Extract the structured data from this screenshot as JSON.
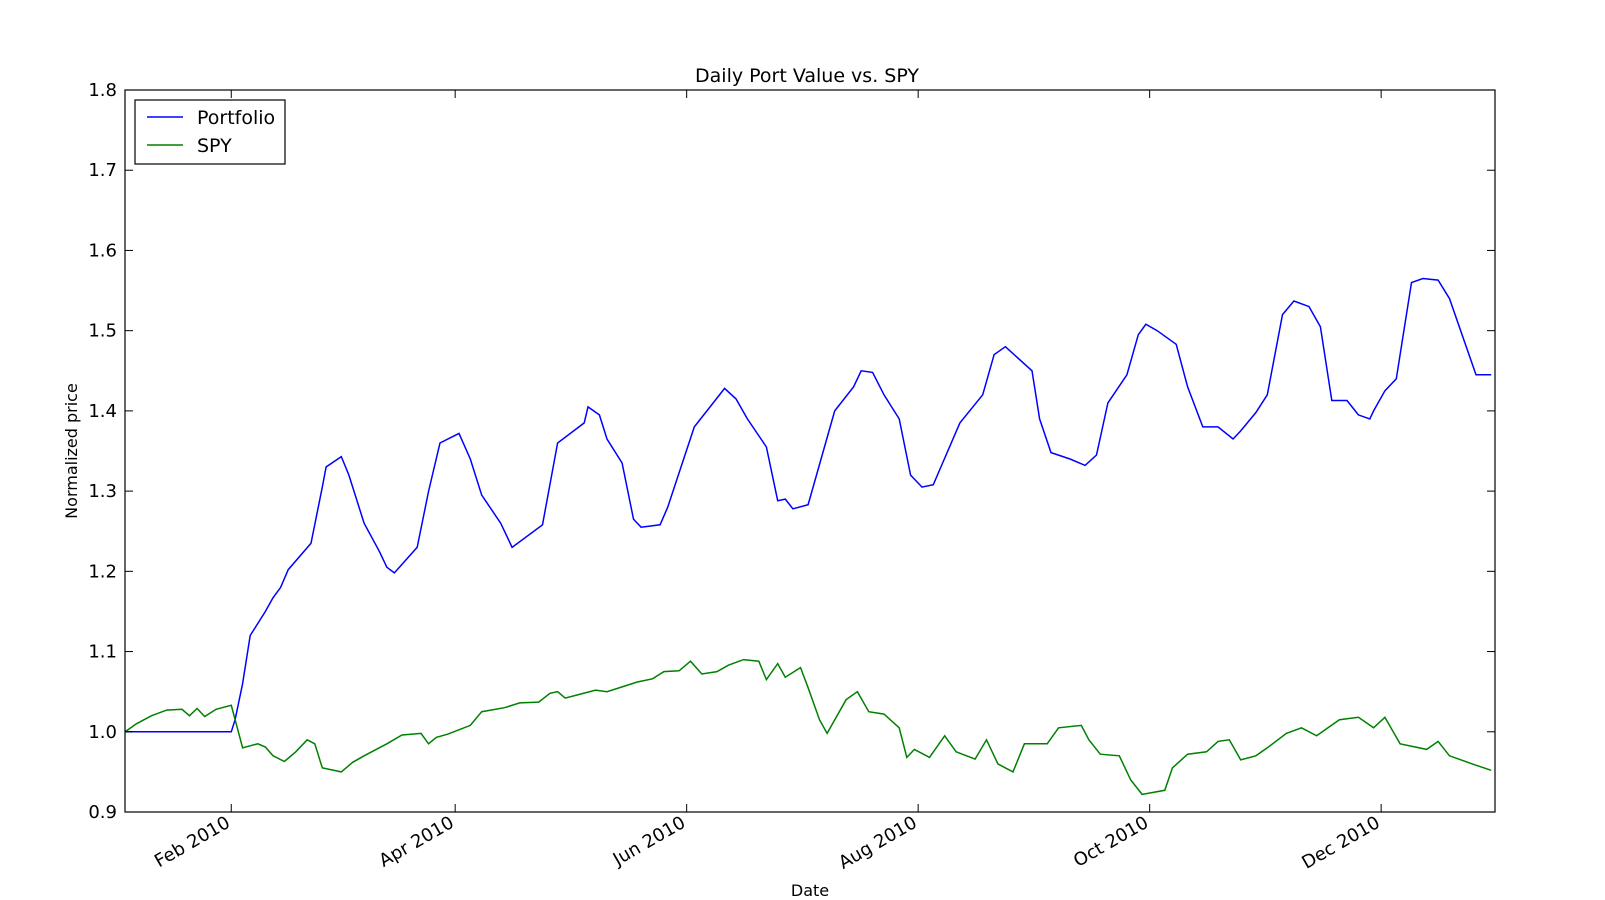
{
  "chart_data": {
    "type": "line",
    "title": "Daily Port Value vs. SPY",
    "xlabel": "Date",
    "ylabel": "Normalized price",
    "x_range": [
      "2010-01-04",
      "2010-12-31"
    ],
    "ylim": [
      0.9,
      1.8
    ],
    "y_ticks": [
      "0.9",
      "1.0",
      "1.1",
      "1.2",
      "1.3",
      "1.4",
      "1.5",
      "1.6",
      "1.7",
      "1.8"
    ],
    "x_ticks": [
      {
        "date": "2010-02-01",
        "label": "Feb 2010"
      },
      {
        "date": "2010-04-01",
        "label": "Apr 2010"
      },
      {
        "date": "2010-06-01",
        "label": "Jun 2010"
      },
      {
        "date": "2010-08-01",
        "label": "Aug 2010"
      },
      {
        "date": "2010-10-01",
        "label": "Oct 2010"
      },
      {
        "date": "2010-12-01",
        "label": "Dec 2010"
      }
    ],
    "grid": false,
    "legend": {
      "position": "top-left"
    },
    "series": [
      {
        "name": "Portfolio",
        "color": "#0000ff",
        "points": [
          [
            "2010-01-04",
            1.0
          ],
          [
            "2010-02-01",
            1.0
          ],
          [
            "2010-02-02",
            1.015
          ],
          [
            "2010-02-04",
            1.06
          ],
          [
            "2010-02-06",
            1.12
          ],
          [
            "2010-02-10",
            1.15
          ],
          [
            "2010-02-12",
            1.167
          ],
          [
            "2010-02-14",
            1.18
          ],
          [
            "2010-02-16",
            1.202
          ],
          [
            "2010-02-22",
            1.235
          ],
          [
            "2010-02-25",
            1.305
          ],
          [
            "2010-02-26",
            1.33
          ],
          [
            "2010-03-02",
            1.343
          ],
          [
            "2010-03-04",
            1.32
          ],
          [
            "2010-03-08",
            1.26
          ],
          [
            "2010-03-12",
            1.225
          ],
          [
            "2010-03-14",
            1.205
          ],
          [
            "2010-03-16",
            1.198
          ],
          [
            "2010-03-22",
            1.23
          ],
          [
            "2010-03-25",
            1.3
          ],
          [
            "2010-03-28",
            1.36
          ],
          [
            "2010-04-02",
            1.372
          ],
          [
            "2010-04-05",
            1.34
          ],
          [
            "2010-04-08",
            1.295
          ],
          [
            "2010-04-13",
            1.26
          ],
          [
            "2010-04-16",
            1.23
          ],
          [
            "2010-04-24",
            1.258
          ],
          [
            "2010-04-28",
            1.36
          ],
          [
            "2010-05-05",
            1.385
          ],
          [
            "2010-05-06",
            1.405
          ],
          [
            "2010-05-09",
            1.395
          ],
          [
            "2010-05-11",
            1.365
          ],
          [
            "2010-05-15",
            1.335
          ],
          [
            "2010-05-18",
            1.265
          ],
          [
            "2010-05-20",
            1.255
          ],
          [
            "2010-05-25",
            1.258
          ],
          [
            "2010-05-27",
            1.28
          ],
          [
            "2010-06-03",
            1.38
          ],
          [
            "2010-06-08",
            1.41
          ],
          [
            "2010-06-11",
            1.428
          ],
          [
            "2010-06-14",
            1.415
          ],
          [
            "2010-06-17",
            1.39
          ],
          [
            "2010-06-22",
            1.355
          ],
          [
            "2010-06-25",
            1.288
          ],
          [
            "2010-06-27",
            1.29
          ],
          [
            "2010-06-29",
            1.278
          ],
          [
            "2010-07-03",
            1.283
          ],
          [
            "2010-07-10",
            1.4
          ],
          [
            "2010-07-15",
            1.43
          ],
          [
            "2010-07-17",
            1.45
          ],
          [
            "2010-07-20",
            1.448
          ],
          [
            "2010-07-23",
            1.42
          ],
          [
            "2010-07-27",
            1.39
          ],
          [
            "2010-07-30",
            1.32
          ],
          [
            "2010-08-02",
            1.305
          ],
          [
            "2010-08-05",
            1.308
          ],
          [
            "2010-08-07",
            1.33
          ],
          [
            "2010-08-12",
            1.385
          ],
          [
            "2010-08-18",
            1.42
          ],
          [
            "2010-08-21",
            1.47
          ],
          [
            "2010-08-24",
            1.48
          ],
          [
            "2010-08-31",
            1.45
          ],
          [
            "2010-09-02",
            1.39
          ],
          [
            "2010-09-05",
            1.348
          ],
          [
            "2010-09-10",
            1.34
          ],
          [
            "2010-09-14",
            1.332
          ],
          [
            "2010-09-17",
            1.345
          ],
          [
            "2010-09-20",
            1.41
          ],
          [
            "2010-09-25",
            1.445
          ],
          [
            "2010-09-28",
            1.495
          ],
          [
            "2010-09-30",
            1.508
          ],
          [
            "2010-10-03",
            1.5
          ],
          [
            "2010-10-08",
            1.483
          ],
          [
            "2010-10-11",
            1.43
          ],
          [
            "2010-10-15",
            1.38
          ],
          [
            "2010-10-19",
            1.38
          ],
          [
            "2010-10-23",
            1.365
          ],
          [
            "2010-10-25",
            1.375
          ],
          [
            "2010-10-29",
            1.398
          ],
          [
            "2010-11-01",
            1.42
          ],
          [
            "2010-11-05",
            1.52
          ],
          [
            "2010-11-08",
            1.537
          ],
          [
            "2010-11-12",
            1.53
          ],
          [
            "2010-11-15",
            1.505
          ],
          [
            "2010-11-18",
            1.413
          ],
          [
            "2010-11-22",
            1.413
          ],
          [
            "2010-11-25",
            1.395
          ],
          [
            "2010-11-28",
            1.39
          ],
          [
            "2010-11-29",
            1.4
          ],
          [
            "2010-12-02",
            1.425
          ],
          [
            "2010-12-05",
            1.44
          ],
          [
            "2010-12-09",
            1.56
          ],
          [
            "2010-12-12",
            1.565
          ],
          [
            "2010-12-16",
            1.563
          ],
          [
            "2010-12-19",
            1.54
          ],
          [
            "2010-12-26",
            1.445
          ],
          [
            "2010-12-30",
            1.445
          ]
        ]
      },
      {
        "name": "SPY",
        "color": "#008000",
        "points": [
          [
            "2010-01-04",
            1.0
          ],
          [
            "2010-01-07",
            1.01
          ],
          [
            "2010-01-11",
            1.02
          ],
          [
            "2010-01-15",
            1.027
          ],
          [
            "2010-01-19",
            1.028
          ],
          [
            "2010-01-21",
            1.02
          ],
          [
            "2010-01-23",
            1.029
          ],
          [
            "2010-01-25",
            1.019
          ],
          [
            "2010-01-28",
            1.028
          ],
          [
            "2010-02-01",
            1.033
          ],
          [
            "2010-02-04",
            0.98
          ],
          [
            "2010-02-08",
            0.985
          ],
          [
            "2010-02-10",
            0.981
          ],
          [
            "2010-02-12",
            0.97
          ],
          [
            "2010-02-15",
            0.963
          ],
          [
            "2010-02-18",
            0.975
          ],
          [
            "2010-02-21",
            0.99
          ],
          [
            "2010-02-23",
            0.985
          ],
          [
            "2010-02-25",
            0.955
          ],
          [
            "2010-03-02",
            0.95
          ],
          [
            "2010-03-05",
            0.962
          ],
          [
            "2010-03-08",
            0.97
          ],
          [
            "2010-03-14",
            0.985
          ],
          [
            "2010-03-18",
            0.996
          ],
          [
            "2010-03-23",
            0.998
          ],
          [
            "2010-03-25",
            0.985
          ],
          [
            "2010-03-27",
            0.993
          ],
          [
            "2010-03-30",
            0.997
          ],
          [
            "2010-04-05",
            1.008
          ],
          [
            "2010-04-08",
            1.025
          ],
          [
            "2010-04-14",
            1.03
          ],
          [
            "2010-04-18",
            1.036
          ],
          [
            "2010-04-23",
            1.037
          ],
          [
            "2010-04-26",
            1.048
          ],
          [
            "2010-04-28",
            1.05
          ],
          [
            "2010-04-30",
            1.042
          ],
          [
            "2010-05-04",
            1.047
          ],
          [
            "2010-05-08",
            1.052
          ],
          [
            "2010-05-11",
            1.05
          ],
          [
            "2010-05-15",
            1.056
          ],
          [
            "2010-05-19",
            1.062
          ],
          [
            "2010-05-23",
            1.066
          ],
          [
            "2010-05-26",
            1.075
          ],
          [
            "2010-05-30",
            1.076
          ],
          [
            "2010-06-02",
            1.088
          ],
          [
            "2010-06-05",
            1.072
          ],
          [
            "2010-06-09",
            1.075
          ],
          [
            "2010-06-12",
            1.083
          ],
          [
            "2010-06-16",
            1.09
          ],
          [
            "2010-06-20",
            1.088
          ],
          [
            "2010-06-22",
            1.065
          ],
          [
            "2010-06-25",
            1.085
          ],
          [
            "2010-06-27",
            1.068
          ],
          [
            "2010-07-01",
            1.08
          ],
          [
            "2010-07-03",
            1.055
          ],
          [
            "2010-07-06",
            1.015
          ],
          [
            "2010-07-08",
            0.998
          ],
          [
            "2010-07-13",
            1.04
          ],
          [
            "2010-07-16",
            1.05
          ],
          [
            "2010-07-19",
            1.025
          ],
          [
            "2010-07-23",
            1.022
          ],
          [
            "2010-07-27",
            1.005
          ],
          [
            "2010-07-29",
            0.968
          ],
          [
            "2010-07-31",
            0.978
          ],
          [
            "2010-08-04",
            0.968
          ],
          [
            "2010-08-08",
            0.995
          ],
          [
            "2010-08-11",
            0.975
          ],
          [
            "2010-08-16",
            0.966
          ],
          [
            "2010-08-19",
            0.99
          ],
          [
            "2010-08-22",
            0.96
          ],
          [
            "2010-08-26",
            0.95
          ],
          [
            "2010-08-29",
            0.985
          ],
          [
            "2010-09-04",
            0.985
          ],
          [
            "2010-09-07",
            1.005
          ],
          [
            "2010-09-13",
            1.008
          ],
          [
            "2010-09-15",
            0.99
          ],
          [
            "2010-09-18",
            0.972
          ],
          [
            "2010-09-23",
            0.97
          ],
          [
            "2010-09-26",
            0.94
          ],
          [
            "2010-09-29",
            0.922
          ],
          [
            "2010-10-05",
            0.927
          ],
          [
            "2010-10-07",
            0.955
          ],
          [
            "2010-10-11",
            0.972
          ],
          [
            "2010-10-16",
            0.975
          ],
          [
            "2010-10-19",
            0.988
          ],
          [
            "2010-10-22",
            0.99
          ],
          [
            "2010-10-25",
            0.965
          ],
          [
            "2010-10-29",
            0.97
          ],
          [
            "2010-11-01",
            0.98
          ],
          [
            "2010-11-06",
            0.998
          ],
          [
            "2010-11-10",
            1.005
          ],
          [
            "2010-11-14",
            0.995
          ],
          [
            "2010-11-20",
            1.015
          ],
          [
            "2010-11-25",
            1.018
          ],
          [
            "2010-11-29",
            1.005
          ],
          [
            "2010-12-02",
            1.018
          ],
          [
            "2010-12-06",
            0.985
          ],
          [
            "2010-12-13",
            0.978
          ],
          [
            "2010-12-16",
            0.988
          ],
          [
            "2010-12-19",
            0.97
          ],
          [
            "2010-12-25",
            0.96
          ],
          [
            "2010-12-30",
            0.952
          ]
        ]
      }
    ]
  }
}
